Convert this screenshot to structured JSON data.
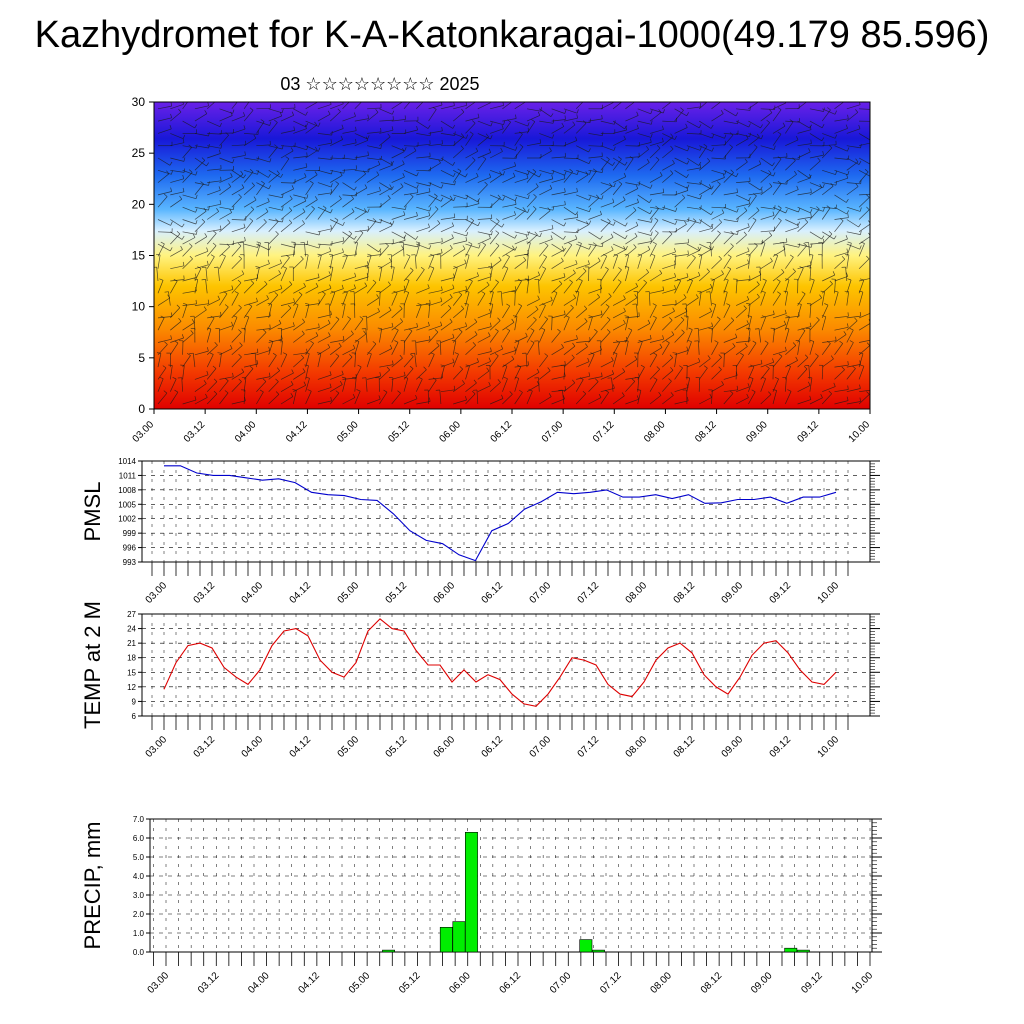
{
  "header": {
    "title": "Kazhydromet for K-A-Katonkaragai-1000(49.179 85.596)",
    "subtitle": "03 ☆☆☆☆☆☆☆☆ 2025"
  },
  "colors": {
    "pmsl_line": "#0000cc",
    "temp_line": "#dd0000",
    "precip_bar": "#00ee00",
    "cross_section_low": "#e00000",
    "cross_section_mid": "#fff380",
    "cross_section_high": "#3a00d8"
  },
  "time_labels": [
    "03.00",
    "03.12",
    "04.00",
    "04.12",
    "05.00",
    "05.12",
    "06.00",
    "06.12",
    "07.00",
    "07.12",
    "08.00",
    "08.12",
    "09.00",
    "09.12",
    "10.00"
  ],
  "chart_data": [
    {
      "type": "heatmap",
      "panel": "cross-section",
      "description_note": "",
      "xlabel": "",
      "ylabel": "",
      "ylim": [
        0,
        30
      ],
      "y_ticks": [
        "0",
        "5",
        "10",
        "15",
        "20",
        "25",
        "30"
      ],
      "colormap": "temperature-style: red (low levels) through yellow to blue/violet (upper levels), overlaid with wind barbs"
    },
    {
      "type": "line",
      "panel": "pmsl",
      "ylabel": "PMSL",
      "ylim": [
        993,
        1014
      ],
      "y_ticks": [
        "1014",
        "1011",
        "1008",
        "1005",
        "1002",
        "999",
        "996",
        "993"
      ],
      "values": [
        1013,
        1013,
        1011.5,
        1011,
        1011,
        1010.5,
        1010,
        1010.3,
        1009.5,
        1007.5,
        1007,
        1006.8,
        1006,
        1005.8,
        1003,
        999.5,
        997.5,
        996.8,
        994.5,
        993.3,
        999.5,
        1001,
        1004,
        1005.5,
        1007.5,
        1007.2,
        1007.5,
        1008,
        1006.5,
        1006.5,
        1007,
        1006.2,
        1007,
        1005.2,
        1005.3,
        1006,
        1006,
        1006.5,
        1005.2,
        1006.5,
        1006.5,
        1007.5
      ]
    },
    {
      "type": "line",
      "panel": "temp2m",
      "ylabel": "TEMP at 2 M",
      "ylim": [
        6,
        27
      ],
      "y_ticks": [
        "27",
        "24",
        "21",
        "18",
        "15",
        "12",
        "9",
        "6"
      ],
      "values": [
        11.5,
        17,
        20.5,
        21,
        20,
        16,
        14,
        12.5,
        15.5,
        20.5,
        23.5,
        24,
        22.5,
        17.5,
        15,
        14,
        17,
        23.5,
        26,
        24,
        23.5,
        19.5,
        16.5,
        16.5,
        13,
        15.5,
        13,
        14.5,
        13.5,
        10.5,
        8.5,
        8,
        10.5,
        14,
        18,
        17.5,
        16.5,
        12.5,
        10.5,
        10,
        13,
        17.5,
        20,
        21,
        19,
        14.5,
        12,
        10.5,
        14,
        18.5,
        21,
        21.5,
        19,
        15.5,
        13,
        12.5,
        15
      ]
    },
    {
      "type": "bar",
      "panel": "precip",
      "ylabel": "PRECIP, mm",
      "ylim": [
        0,
        7
      ],
      "y_ticks": [
        "7.0",
        "6.0",
        "5.0",
        "4.0",
        "3.0",
        "2.0",
        "1.0",
        "0.0"
      ],
      "bars": [
        {
          "x": 18.7,
          "value": 0.1
        },
        {
          "x": 23.3,
          "value": 1.3
        },
        {
          "x": 24.3,
          "value": 1.6
        },
        {
          "x": 25.3,
          "value": 6.3
        },
        {
          "x": 34.4,
          "value": 0.65
        },
        {
          "x": 35.4,
          "value": 0.1
        },
        {
          "x": 50.7,
          "value": 0.2
        },
        {
          "x": 51.7,
          "value": 0.1
        }
      ]
    }
  ]
}
